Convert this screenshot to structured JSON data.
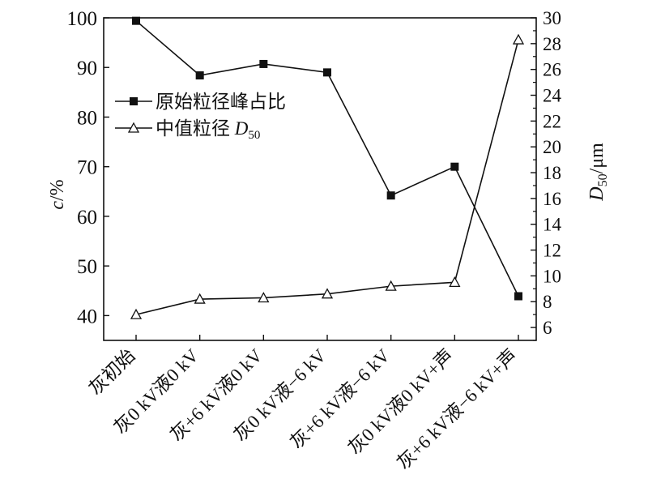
{
  "chart_data": {
    "type": "line",
    "categories": [
      "灰初始",
      "灰0 kV液0 kV",
      "灰+6 kV液0 kV",
      "灰0 kV液−6 kV",
      "灰+6 kV液−6 kV",
      "灰0 kV液0 kV+声",
      "灰+6 kV液−6 kV+声"
    ],
    "series": [
      {
        "name": "原始粒径峰占比",
        "axis": "left",
        "marker": "filled-square",
        "values": [
          99.4,
          88.4,
          90.7,
          89.0,
          64.2,
          70.0,
          43.9
        ]
      },
      {
        "name": "中值粒径 D50",
        "axis": "right",
        "marker": "open-triangle",
        "values": [
          7.0,
          8.2,
          8.3,
          8.6,
          9.2,
          9.5,
          28.3
        ]
      }
    ],
    "ylabel_left": {
      "main": "c",
      "rest": "/%"
    },
    "ylabel_right": {
      "main": "D",
      "sub": "50",
      "rest": "/μm"
    },
    "legend_items": [
      {
        "name": "原始粒径峰占比",
        "series": 0
      },
      {
        "name_main": "中值粒径 ",
        "name_italic": "D",
        "name_sub": "50",
        "series": 1
      }
    ],
    "ylim_left": [
      35,
      100
    ],
    "ylim_right": [
      5,
      30
    ],
    "left_ticks": [
      40,
      50,
      60,
      70,
      80,
      90,
      100
    ],
    "right_ticks": [
      6,
      8,
      10,
      12,
      14,
      16,
      18,
      20,
      22,
      24,
      26,
      28,
      30
    ],
    "grid": false,
    "legend_position": "upper-left",
    "colors": {
      "line": "#111111",
      "axis": "#111111"
    }
  }
}
